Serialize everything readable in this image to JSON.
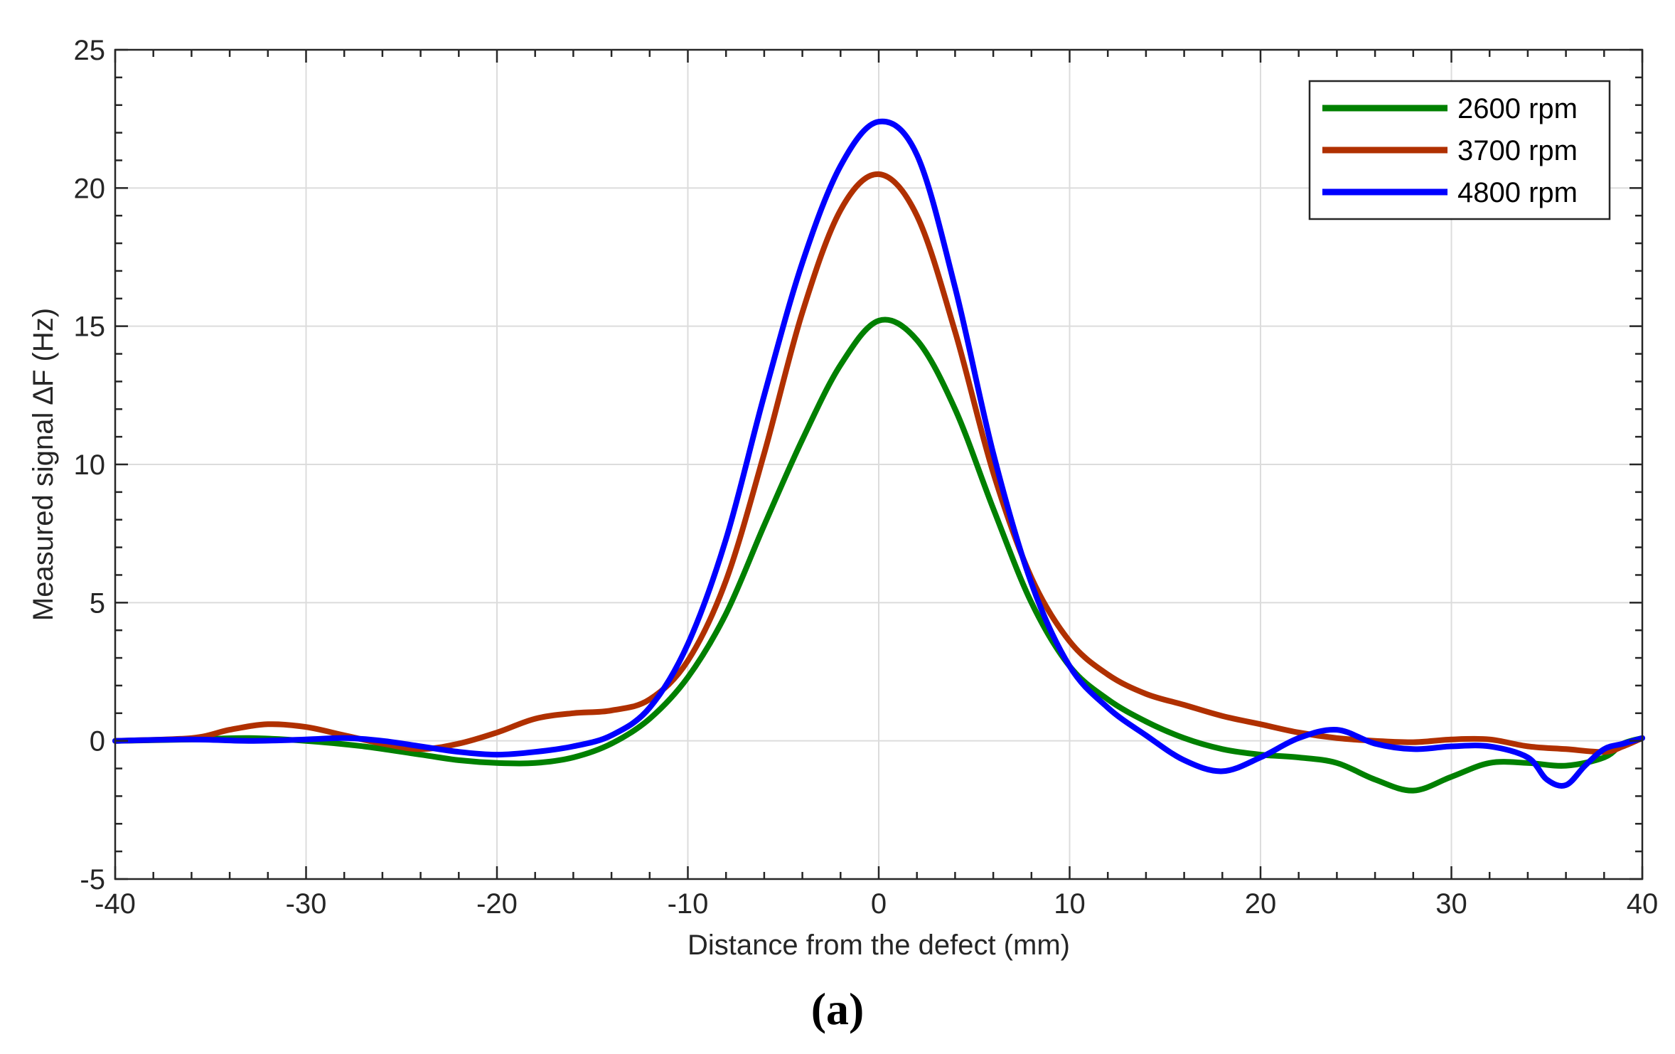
{
  "chart_data": {
    "type": "line",
    "title": "",
    "xlabel": "Distance from the defect (mm)",
    "ylabel": "Measured signal ∆F (Hz)",
    "xlim": [
      -40,
      40
    ],
    "ylim": [
      -5,
      25
    ],
    "xticks": [
      -40,
      -30,
      -20,
      -10,
      0,
      10,
      20,
      30,
      40
    ],
    "yticks": [
      -5,
      0,
      5,
      10,
      15,
      20,
      25
    ],
    "grid": true,
    "legend_position": "top-right",
    "caption": "(a)",
    "series": [
      {
        "name": "2600 rpm",
        "color": "#008000",
        "points": [
          [
            -40,
            0
          ],
          [
            -36,
            0.05
          ],
          [
            -33,
            0.1
          ],
          [
            -30,
            0
          ],
          [
            -27,
            -0.2
          ],
          [
            -24,
            -0.5
          ],
          [
            -22,
            -0.7
          ],
          [
            -20,
            -0.8
          ],
          [
            -18,
            -0.8
          ],
          [
            -16,
            -0.6
          ],
          [
            -14,
            -0.1
          ],
          [
            -12,
            0.8
          ],
          [
            -10,
            2.3
          ],
          [
            -8,
            4.6
          ],
          [
            -6,
            7.8
          ],
          [
            -4,
            10.9
          ],
          [
            -2,
            13.6
          ],
          [
            0,
            15.2
          ],
          [
            2,
            14.5
          ],
          [
            4,
            12.0
          ],
          [
            6,
            8.4
          ],
          [
            8,
            5.0
          ],
          [
            10,
            2.7
          ],
          [
            12,
            1.5
          ],
          [
            14,
            0.7
          ],
          [
            16,
            0.1
          ],
          [
            18,
            -0.3
          ],
          [
            20,
            -0.5
          ],
          [
            22,
            -0.6
          ],
          [
            24,
            -0.8
          ],
          [
            26,
            -1.4
          ],
          [
            28,
            -1.8
          ],
          [
            30,
            -1.3
          ],
          [
            32,
            -0.8
          ],
          [
            34,
            -0.8
          ],
          [
            36,
            -0.9
          ],
          [
            38,
            -0.6
          ],
          [
            39,
            -0.1
          ],
          [
            40,
            0.1
          ]
        ]
      },
      {
        "name": "3700 rpm",
        "color": "#b03000",
        "points": [
          [
            -40,
            0
          ],
          [
            -36,
            0.1
          ],
          [
            -34,
            0.4
          ],
          [
            -32,
            0.6
          ],
          [
            -30,
            0.5
          ],
          [
            -28,
            0.2
          ],
          [
            -26,
            -0.1
          ],
          [
            -24,
            -0.3
          ],
          [
            -22,
            -0.1
          ],
          [
            -20,
            0.3
          ],
          [
            -18,
            0.8
          ],
          [
            -16,
            1.0
          ],
          [
            -14,
            1.1
          ],
          [
            -12,
            1.5
          ],
          [
            -10,
            2.9
          ],
          [
            -8,
            5.8
          ],
          [
            -6,
            10.4
          ],
          [
            -4,
            15.5
          ],
          [
            -2,
            19.2
          ],
          [
            0,
            20.5
          ],
          [
            2,
            19.0
          ],
          [
            4,
            14.8
          ],
          [
            6,
            9.7
          ],
          [
            8,
            5.9
          ],
          [
            10,
            3.6
          ],
          [
            12,
            2.4
          ],
          [
            14,
            1.7
          ],
          [
            16,
            1.3
          ],
          [
            18,
            0.9
          ],
          [
            20,
            0.6
          ],
          [
            22,
            0.3
          ],
          [
            24,
            0.1
          ],
          [
            26,
            0
          ],
          [
            28,
            -0.05
          ],
          [
            30,
            0.05
          ],
          [
            32,
            0.05
          ],
          [
            34,
            -0.2
          ],
          [
            36,
            -0.3
          ],
          [
            38,
            -0.4
          ],
          [
            39,
            -0.2
          ],
          [
            40,
            0.1
          ]
        ]
      },
      {
        "name": "4800 rpm",
        "color": "#0000ff",
        "points": [
          [
            -40,
            0
          ],
          [
            -36,
            0.05
          ],
          [
            -33,
            0
          ],
          [
            -30,
            0.05
          ],
          [
            -28,
            0.1
          ],
          [
            -26,
            0
          ],
          [
            -24,
            -0.2
          ],
          [
            -22,
            -0.4
          ],
          [
            -20,
            -0.5
          ],
          [
            -18,
            -0.4
          ],
          [
            -16,
            -0.2
          ],
          [
            -14,
            0.2
          ],
          [
            -12,
            1.2
          ],
          [
            -10,
            3.5
          ],
          [
            -8,
            7.3
          ],
          [
            -6,
            12.5
          ],
          [
            -4,
            17.3
          ],
          [
            -2,
            20.8
          ],
          [
            0,
            22.4
          ],
          [
            2,
            21.2
          ],
          [
            4,
            16.4
          ],
          [
            6,
            10.4
          ],
          [
            8,
            5.7
          ],
          [
            10,
            2.7
          ],
          [
            12,
            1.2
          ],
          [
            14,
            0.2
          ],
          [
            16,
            -0.7
          ],
          [
            18,
            -1.1
          ],
          [
            20,
            -0.6
          ],
          [
            22,
            0.1
          ],
          [
            24,
            0.4
          ],
          [
            26,
            -0.1
          ],
          [
            28,
            -0.3
          ],
          [
            30,
            -0.2
          ],
          [
            32,
            -0.2
          ],
          [
            34,
            -0.6
          ],
          [
            35,
            -1.4
          ],
          [
            36,
            -1.6
          ],
          [
            37,
            -0.9
          ],
          [
            38,
            -0.3
          ],
          [
            39,
            -0.1
          ],
          [
            40,
            0.1
          ]
        ]
      }
    ]
  }
}
